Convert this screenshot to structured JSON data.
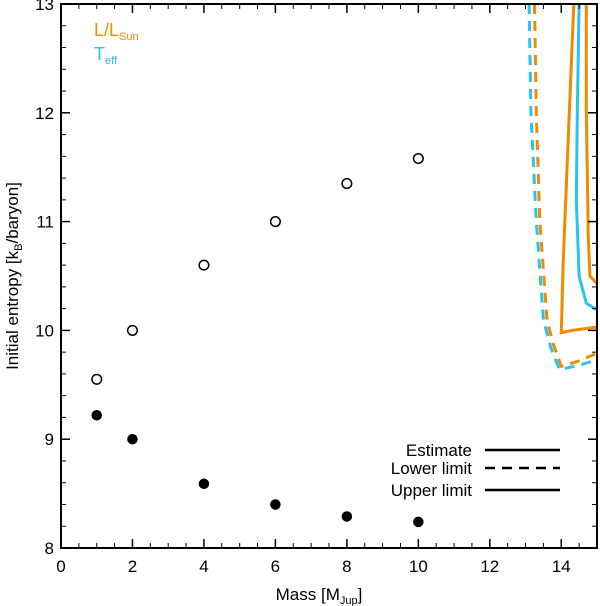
{
  "chart_data": {
    "type": "scatter",
    "xlabel": {
      "main": "Mass [M",
      "sub": "Jup",
      "close": "]"
    },
    "ylabel": {
      "main": "Initial entropy [k",
      "sub": "B",
      "close": "/baryon]"
    },
    "xlim": [
      0,
      15
    ],
    "ylim": [
      8,
      13
    ],
    "xticks": [
      0,
      2,
      4,
      6,
      8,
      10,
      12,
      14
    ],
    "yticks": [
      8,
      9,
      10,
      11,
      12,
      13
    ],
    "grid": false,
    "series": [
      {
        "marker": "open-circle",
        "color": "#000000",
        "points": [
          [
            1,
            9.55
          ],
          [
            2,
            10.0
          ],
          [
            4,
            10.6
          ],
          [
            6,
            11.0
          ],
          [
            8,
            11.35
          ],
          [
            10,
            11.58
          ]
        ]
      },
      {
        "marker": "filled-circle",
        "color": "#000000",
        "points": [
          [
            1,
            9.22
          ],
          [
            2,
            9.0
          ],
          [
            4,
            8.59
          ],
          [
            6,
            8.4
          ],
          [
            8,
            8.29
          ],
          [
            10,
            8.24
          ]
        ]
      },
      {
        "quantity": "L/L_Sun",
        "line": "solid",
        "color": "#f08a00",
        "points": [
          [
            14.35,
            13.0
          ],
          [
            14.2,
            11.8
          ],
          [
            14.05,
            10.6
          ],
          [
            14.0,
            9.98
          ],
          [
            14.3,
            10.0
          ],
          [
            15.0,
            10.03
          ]
        ]
      },
      {
        "quantity": "L/L_Sun",
        "line": "solid",
        "color": "#f08a00",
        "points": [
          [
            14.7,
            13.0
          ],
          [
            14.7,
            12.0
          ],
          [
            14.75,
            11.0
          ],
          [
            14.75,
            10.9
          ],
          [
            14.8,
            10.5
          ],
          [
            15.0,
            10.43
          ]
        ]
      },
      {
        "quantity": "T_eff",
        "line": "solid",
        "color": "#29c3ef",
        "points": [
          [
            14.5,
            13.0
          ],
          [
            14.45,
            12.0
          ],
          [
            14.42,
            11.2
          ],
          [
            14.5,
            10.5
          ],
          [
            14.7,
            10.25
          ],
          [
            15.0,
            10.19
          ]
        ]
      },
      {
        "quantity": "L/L_Sun",
        "line": "dashed",
        "color": "#f08a00",
        "points": [
          [
            13.25,
            13.0
          ],
          [
            13.3,
            12.0
          ],
          [
            13.4,
            11.0
          ],
          [
            13.6,
            10.1
          ],
          [
            13.75,
            9.9
          ],
          [
            14.0,
            9.67
          ],
          [
            14.5,
            9.72
          ],
          [
            15.0,
            9.79
          ]
        ]
      },
      {
        "quantity": "T_eff",
        "line": "dashed",
        "color": "#29c3ef",
        "points": [
          [
            13.1,
            13.0
          ],
          [
            13.15,
            12.0
          ],
          [
            13.3,
            11.0
          ],
          [
            13.5,
            10.1
          ],
          [
            13.7,
            9.85
          ],
          [
            13.95,
            9.64
          ],
          [
            14.5,
            9.68
          ],
          [
            15.0,
            9.73
          ]
        ]
      }
    ],
    "color_legend": {
      "placement": "top-left",
      "items": [
        {
          "main": "L/L",
          "sub": "Sun",
          "color": "#f08a00"
        },
        {
          "main": "T",
          "sub": "eff",
          "color": "#29c3ef"
        }
      ]
    },
    "line_legend": {
      "placement": "bottom-right",
      "items": [
        {
          "label": "Estimate",
          "line": "solid"
        },
        {
          "label": "Lower limit",
          "line": "dashed"
        },
        {
          "label": "Upper limit",
          "line": "solid"
        }
      ]
    }
  }
}
